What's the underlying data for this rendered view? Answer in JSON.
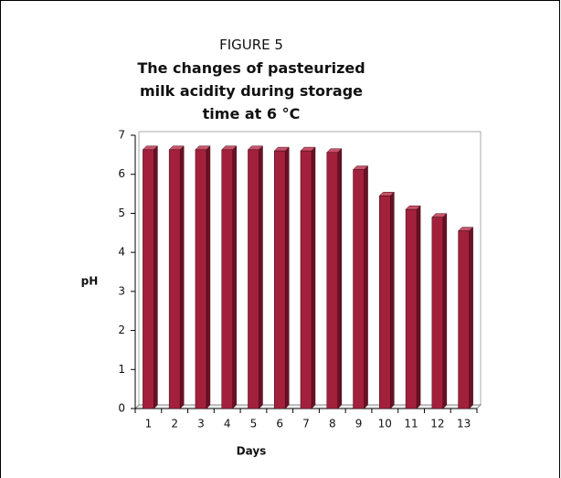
{
  "chart_data": {
    "type": "bar",
    "title": "FIGURE 5",
    "subtitle": "The changes of pasteurized milk acidity during storage time at 6 °C",
    "x_label": "Days",
    "y_label": "pH",
    "categories": [
      "1",
      "2",
      "3",
      "4",
      "5",
      "6",
      "7",
      "8",
      "9",
      "10",
      "11",
      "12",
      "13"
    ],
    "values": [
      6.63,
      6.63,
      6.63,
      6.63,
      6.63,
      6.6,
      6.6,
      6.56,
      6.12,
      5.45,
      5.1,
      4.9,
      4.55
    ],
    "color": "#a3203c",
    "ylim": [
      0,
      7
    ],
    "yticks": [
      0,
      1,
      2,
      3,
      4,
      5,
      6,
      7
    ],
    "grid": false
  }
}
